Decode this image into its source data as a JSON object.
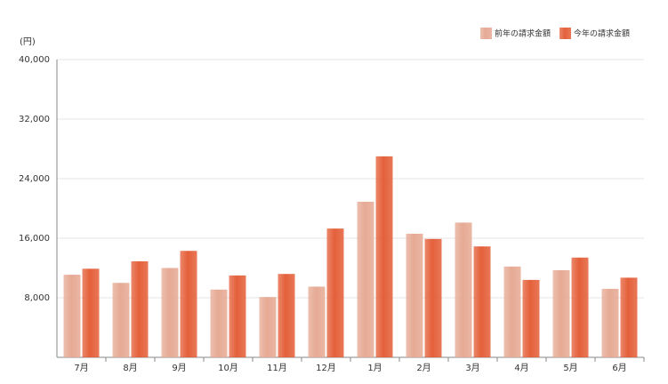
{
  "chart_data": {
    "type": "bar",
    "y_label": "(円)",
    "categories": [
      "7月",
      "8月",
      "9月",
      "10月",
      "11月",
      "12月",
      "1月",
      "2月",
      "3月",
      "4月",
      "5月",
      "6月"
    ],
    "series": [
      {
        "name": "前年の請求金額",
        "color": "#e6aa94",
        "values": [
          11100,
          10000,
          12000,
          9100,
          8100,
          9500,
          20900,
          16600,
          18100,
          12200,
          11700,
          9200
        ]
      },
      {
        "name": "今年の請求金額",
        "color": "#e4603a",
        "values": [
          11900,
          12900,
          14300,
          11000,
          11200,
          17300,
          27000,
          15900,
          14900,
          10400,
          13400,
          10700
        ]
      }
    ],
    "ylim": [
      0,
      40000
    ],
    "yticks": [
      {
        "value": 8000,
        "label": "8,000"
      },
      {
        "value": 16000,
        "label": "16,000"
      },
      {
        "value": 24000,
        "label": "24,000"
      },
      {
        "value": 32000,
        "label": "32,000"
      },
      {
        "value": 40000,
        "label": "40,000"
      }
    ],
    "grid": true,
    "legend": "top-right"
  }
}
